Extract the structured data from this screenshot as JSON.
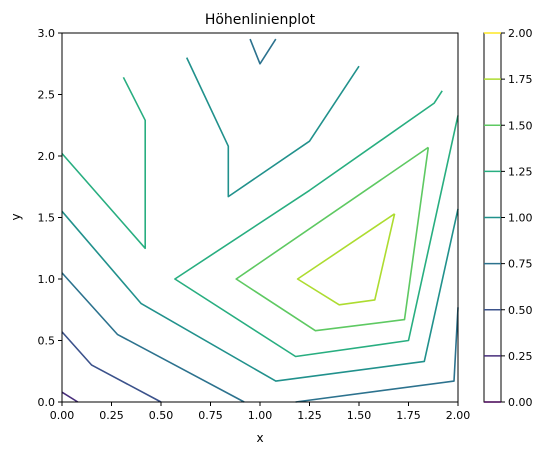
{
  "chart_data": {
    "type": "contour",
    "title": "Höhenlinienplot",
    "xlabel": "x",
    "ylabel": "y",
    "xlim": [
      0,
      2
    ],
    "ylim": [
      0,
      3
    ],
    "xticks": [
      "0.00",
      "0.25",
      "0.50",
      "0.75",
      "1.00",
      "1.25",
      "1.50",
      "1.75",
      "2.00"
    ],
    "yticks": [
      "0.0",
      "0.5",
      "1.0",
      "1.5",
      "2.0",
      "2.5",
      "3.0"
    ],
    "colorbar": {
      "levels": [
        0.0,
        0.25,
        0.5,
        0.75,
        1.0,
        1.25,
        1.5,
        1.75,
        2.0
      ],
      "tick_labels": [
        "0.00",
        "0.25",
        "0.50",
        "0.75",
        "1.00",
        "1.25",
        "1.50",
        "1.75",
        "2.00"
      ],
      "colors": [
        "#440154",
        "#472d7b",
        "#3b528b",
        "#2c728e",
        "#21918c",
        "#28ae80",
        "#5ec962",
        "#addc30",
        "#fde725"
      ]
    },
    "contours": [
      {
        "level": 0.25,
        "paths": [
          [
            [
              0.0,
              0.08
            ],
            [
              0.08,
              0.0
            ]
          ]
        ]
      },
      {
        "level": 0.5,
        "paths": [
          [
            [
              0.0,
              0.57
            ],
            [
              0.15,
              0.3
            ],
            [
              0.5,
              0.0
            ]
          ]
        ]
      },
      {
        "level": 0.75,
        "paths": [
          [
            [
              0.0,
              1.05
            ],
            [
              0.28,
              0.55
            ],
            [
              0.92,
              0.0
            ]
          ],
          [
            [
              1.18,
              0.0
            ],
            [
              1.98,
              0.17
            ],
            [
              2.0,
              0.77
            ]
          ],
          [
            [
              0.95,
              2.95
            ],
            [
              1.0,
              2.75
            ],
            [
              1.08,
              2.95
            ]
          ]
        ]
      },
      {
        "level": 1.0,
        "paths": [
          [
            [
              0.0,
              1.55
            ],
            [
              0.4,
              0.8
            ],
            [
              1.08,
              0.17
            ],
            [
              1.83,
              0.33
            ],
            [
              2.0,
              1.57
            ]
          ],
          [
            [
              0.63,
              2.8
            ],
            [
              0.84,
              2.08
            ],
            [
              0.84,
              1.67
            ],
            [
              1.25,
              2.12
            ],
            [
              1.5,
              2.73
            ]
          ]
        ]
      },
      {
        "level": 1.25,
        "paths": [
          [
            [
              0.0,
              2.02
            ],
            [
              0.42,
              1.25
            ],
            [
              0.42,
              2.29
            ],
            [
              0.31,
              2.64
            ]
          ],
          [
            [
              1.92,
              2.53
            ],
            [
              1.88,
              2.43
            ],
            [
              1.25,
              1.72
            ],
            [
              0.57,
              1.0
            ],
            [
              1.18,
              0.37
            ],
            [
              1.75,
              0.5
            ],
            [
              2.0,
              2.33
            ]
          ]
        ]
      },
      {
        "level": 1.5,
        "paths": [
          [
            [
              1.85,
              2.07
            ],
            [
              0.88,
              1.0
            ],
            [
              1.28,
              0.58
            ],
            [
              1.73,
              0.67
            ],
            [
              1.85,
              2.07
            ]
          ]
        ]
      },
      {
        "level": 1.75,
        "paths": [
          [
            [
              1.68,
              1.53
            ],
            [
              1.19,
              1.0
            ],
            [
              1.4,
              0.79
            ],
            [
              1.58,
              0.83
            ],
            [
              1.68,
              1.53
            ]
          ]
        ]
      }
    ]
  }
}
